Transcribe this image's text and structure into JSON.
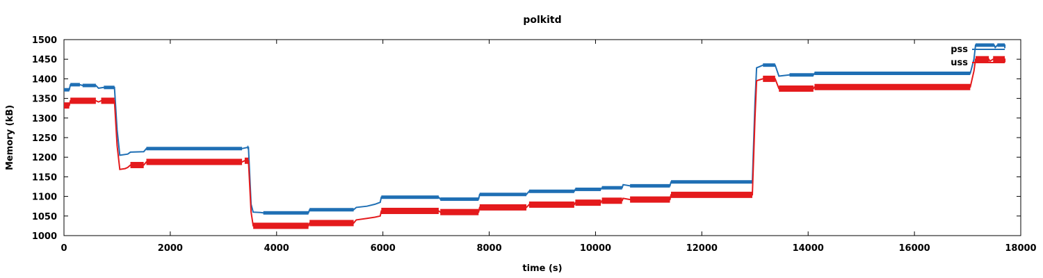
{
  "chart_data": {
    "type": "line",
    "title": "polkitd",
    "xlabel": "time (s)",
    "ylabel": "Memory (kB)",
    "xlim": [
      0,
      18000
    ],
    "ylim": [
      1000,
      1500
    ],
    "x_ticks": [
      "0",
      "2000",
      "4000",
      "6000",
      "8000",
      "10000",
      "12000",
      "14000",
      "16000",
      "18000"
    ],
    "y_ticks": [
      "1000",
      "1050",
      "1100",
      "1150",
      "1200",
      "1250",
      "1300",
      "1350",
      "1400",
      "1450",
      "1500"
    ],
    "grid": false,
    "legend_position": "top-right",
    "series": [
      {
        "name": "pss",
        "color": "#1f6fb4",
        "points": [
          [
            0,
            1372
          ],
          [
            100,
            1372
          ],
          [
            120,
            1385
          ],
          [
            300,
            1385
          ],
          [
            350,
            1383
          ],
          [
            600,
            1383
          ],
          [
            650,
            1376
          ],
          [
            750,
            1378
          ],
          [
            950,
            1378
          ],
          [
            1000,
            1270
          ],
          [
            1050,
            1205
          ],
          [
            1200,
            1208
          ],
          [
            1250,
            1213
          ],
          [
            1500,
            1214
          ],
          [
            1550,
            1222
          ],
          [
            3350,
            1222
          ],
          [
            3450,
            1225
          ],
          [
            3470,
            1225
          ],
          [
            3520,
            1080
          ],
          [
            3560,
            1060
          ],
          [
            3700,
            1059
          ],
          [
            3750,
            1058
          ],
          [
            4600,
            1058
          ],
          [
            4620,
            1066
          ],
          [
            5450,
            1066
          ],
          [
            5500,
            1072
          ],
          [
            5700,
            1075
          ],
          [
            5850,
            1080
          ],
          [
            5950,
            1085
          ],
          [
            5970,
            1098
          ],
          [
            7050,
            1098
          ],
          [
            7080,
            1093
          ],
          [
            7800,
            1093
          ],
          [
            7820,
            1105
          ],
          [
            8700,
            1105
          ],
          [
            8750,
            1113
          ],
          [
            9600,
            1113
          ],
          [
            9620,
            1118
          ],
          [
            10100,
            1118
          ],
          [
            10120,
            1122
          ],
          [
            10500,
            1122
          ],
          [
            10520,
            1130
          ],
          [
            10650,
            1127
          ],
          [
            11400,
            1127
          ],
          [
            11420,
            1137
          ],
          [
            12950,
            1137
          ],
          [
            13000,
            1340
          ],
          [
            13030,
            1428
          ],
          [
            13100,
            1432
          ],
          [
            13150,
            1435
          ],
          [
            13380,
            1435
          ],
          [
            13450,
            1407
          ],
          [
            13650,
            1410
          ],
          [
            14100,
            1410
          ],
          [
            14120,
            1414
          ],
          [
            17050,
            1414
          ],
          [
            17120,
            1450
          ],
          [
            17150,
            1486
          ],
          [
            17500,
            1486
          ],
          [
            17520,
            1480
          ],
          [
            17560,
            1486
          ],
          [
            17700,
            1486
          ],
          [
            17700,
            1478
          ]
        ]
      },
      {
        "name": "uss",
        "color": "#e41a1c",
        "points": [
          [
            0,
            1332
          ],
          [
            100,
            1332
          ],
          [
            120,
            1344
          ],
          [
            600,
            1344
          ],
          [
            650,
            1341
          ],
          [
            700,
            1344
          ],
          [
            950,
            1344
          ],
          [
            1000,
            1230
          ],
          [
            1050,
            1169
          ],
          [
            1150,
            1171
          ],
          [
            1200,
            1174
          ],
          [
            1250,
            1180
          ],
          [
            1500,
            1180
          ],
          [
            1550,
            1188
          ],
          [
            3350,
            1188
          ],
          [
            3400,
            1191
          ],
          [
            3470,
            1191
          ],
          [
            3520,
            1060
          ],
          [
            3560,
            1025
          ],
          [
            4600,
            1025
          ],
          [
            4620,
            1032
          ],
          [
            5450,
            1032
          ],
          [
            5500,
            1040
          ],
          [
            5700,
            1044
          ],
          [
            5850,
            1047
          ],
          [
            5950,
            1050
          ],
          [
            5970,
            1063
          ],
          [
            7050,
            1063
          ],
          [
            7080,
            1060
          ],
          [
            7800,
            1060
          ],
          [
            7820,
            1072
          ],
          [
            8700,
            1072
          ],
          [
            8750,
            1079
          ],
          [
            9600,
            1079
          ],
          [
            9620,
            1084
          ],
          [
            10100,
            1084
          ],
          [
            10120,
            1089
          ],
          [
            10500,
            1089
          ],
          [
            10520,
            1095
          ],
          [
            10650,
            1092
          ],
          [
            11400,
            1092
          ],
          [
            11420,
            1104
          ],
          [
            12950,
            1104
          ],
          [
            13000,
            1300
          ],
          [
            13030,
            1395
          ],
          [
            13100,
            1398
          ],
          [
            13150,
            1400
          ],
          [
            13380,
            1400
          ],
          [
            13450,
            1375
          ],
          [
            14100,
            1375
          ],
          [
            14120,
            1379
          ],
          [
            17050,
            1379
          ],
          [
            17120,
            1420
          ],
          [
            17150,
            1450
          ],
          [
            17400,
            1450
          ],
          [
            17420,
            1445
          ],
          [
            17480,
            1450
          ],
          [
            17700,
            1450
          ],
          [
            17700,
            1442
          ]
        ]
      }
    ]
  }
}
